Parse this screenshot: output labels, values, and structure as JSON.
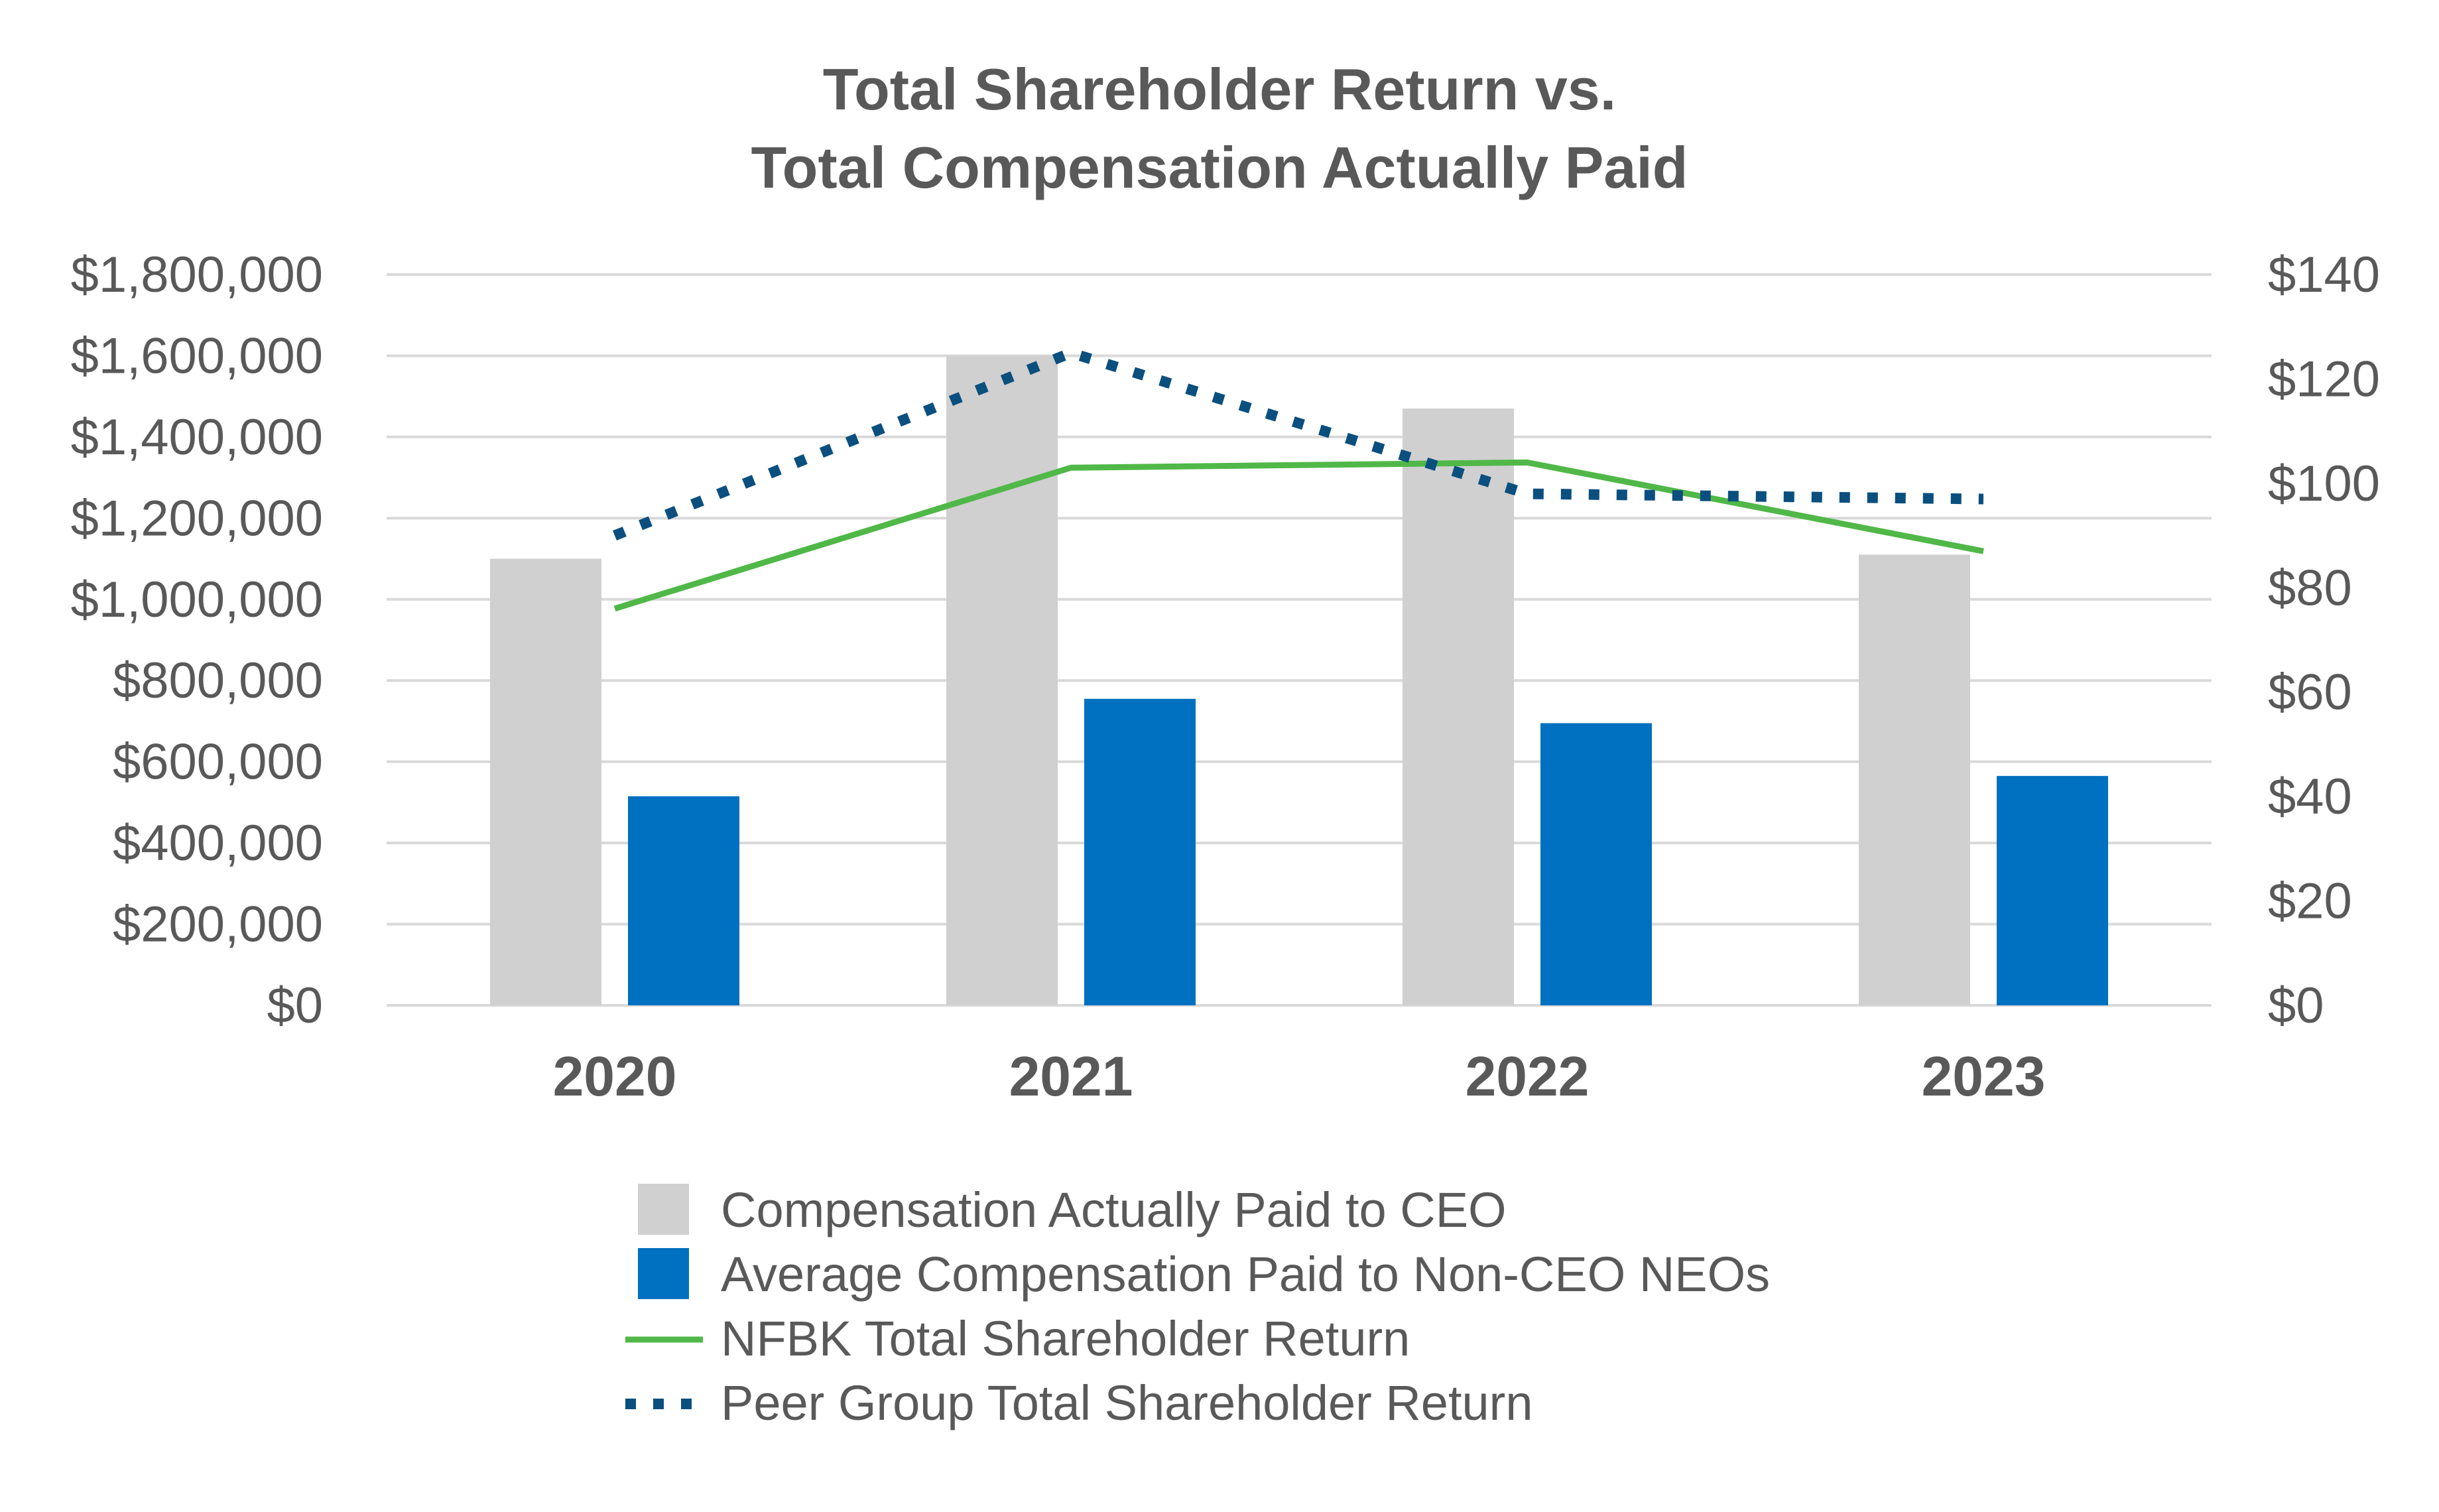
{
  "chart_data": {
    "type": "bar",
    "title_lines": [
      "Total Shareholder Return vs.",
      "Total Compensation Actually Paid"
    ],
    "categories": [
      "2020",
      "2021",
      "2022",
      "2023"
    ],
    "series": [
      {
        "name": "Compensation Actually Paid to CEO",
        "kind": "bar",
        "axis": "left",
        "color": "#d0d0d0",
        "values": [
          1100000,
          1600000,
          1470000,
          1110000
        ]
      },
      {
        "name": "Average Compensation Paid to Non-CEO NEOs",
        "kind": "bar",
        "axis": "left",
        "color": "#0070c0",
        "values": [
          515000,
          755000,
          695000,
          565000
        ]
      },
      {
        "name": "NFBK Total Shareholder Return",
        "kind": "line",
        "style": "solid",
        "axis": "right",
        "color": "#50b848",
        "values": [
          76,
          103,
          104,
          87
        ]
      },
      {
        "name": "Peer Group Total Shareholder Return",
        "kind": "line",
        "style": "dotted",
        "axis": "right",
        "color": "#0b4f7f",
        "values": [
          90,
          125,
          98,
          97
        ]
      }
    ],
    "left_axis": {
      "min": 0,
      "max": 1800000,
      "step": 200000,
      "tick_labels": [
        "$0",
        "$200,000",
        "$400,000",
        "$600,000",
        "$800,000",
        "$1,000,000",
        "$1,200,000",
        "$1,400,000",
        "$1,600,000",
        "$1,800,000"
      ]
    },
    "right_axis": {
      "min": 0,
      "max": 140,
      "step": 20,
      "tick_labels": [
        "$0",
        "$20",
        "$40",
        "$60",
        "$80",
        "$100",
        "$120",
        "$140"
      ]
    },
    "grid": true,
    "legend_position": "bottom",
    "gridline_color": "#d9d9d9",
    "text_color": "#595959"
  }
}
